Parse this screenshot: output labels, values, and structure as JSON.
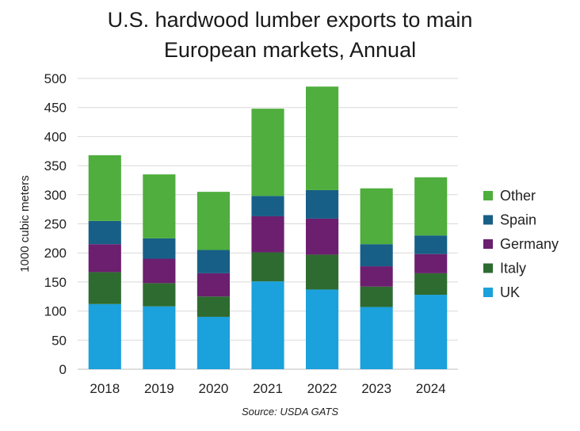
{
  "chart_data": {
    "type": "bar",
    "stacked": true,
    "title_line1": "U.S. hardwood lumber exports to main",
    "title_line2": "European markets, Annual",
    "ylabel": "1000 cubic meters",
    "xlabel": "",
    "ylim": [
      0,
      500
    ],
    "yticks": [
      0,
      50,
      100,
      150,
      200,
      250,
      300,
      350,
      400,
      450,
      500
    ],
    "grid": true,
    "legend_position": "right",
    "categories": [
      "2018",
      "2019",
      "2020",
      "2021",
      "2022",
      "2023",
      "2024"
    ],
    "series": [
      {
        "name": "UK",
        "color": "#1ba1dc",
        "values": [
          112,
          108,
          90,
          151,
          137,
          107,
          128
        ]
      },
      {
        "name": "Italy",
        "color": "#2e6b30",
        "values": [
          55,
          40,
          35,
          50,
          60,
          35,
          37
        ]
      },
      {
        "name": "Germany",
        "color": "#6b1f6e",
        "values": [
          48,
          42,
          40,
          62,
          62,
          35,
          33
        ]
      },
      {
        "name": "Spain",
        "color": "#175f86",
        "values": [
          40,
          35,
          40,
          35,
          49,
          38,
          32
        ]
      },
      {
        "name": "Other",
        "color": "#4fae3d",
        "values": [
          113,
          110,
          100,
          150,
          178,
          96,
          100
        ]
      }
    ],
    "source": "Source: USDA GATS"
  }
}
